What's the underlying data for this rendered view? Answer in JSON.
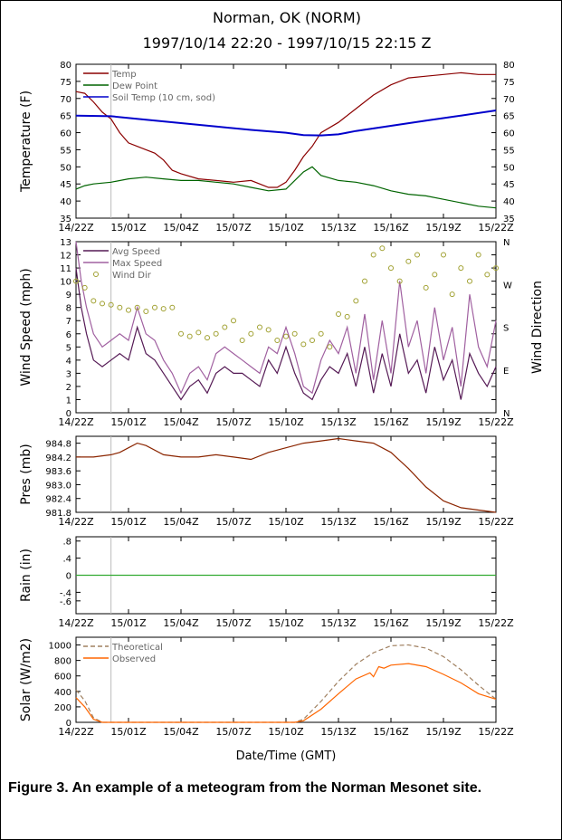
{
  "chart_data": {
    "type": "line",
    "title": "Norman, OK  (NORM)",
    "subtitle": "1997/10/14 22:20 - 1997/10/15 22:15 Z",
    "xlabel": "Date/Time (GMT)",
    "x_tick_labels": [
      "14/22Z",
      "15/01Z",
      "15/04Z",
      "15/07Z",
      "15/10Z",
      "15/13Z",
      "15/16Z",
      "15/19Z",
      "15/22Z"
    ],
    "x_range_hours": [
      0,
      24
    ],
    "panels": [
      {
        "id": "temperature",
        "ylabel": "Temperature (F)",
        "ylim": [
          35,
          80
        ],
        "y_ticks": [
          "35",
          "40",
          "45",
          "50",
          "55",
          "60",
          "65",
          "70",
          "75",
          "80"
        ],
        "right_y_ticks": [
          "35",
          "40",
          "45",
          "50",
          "55",
          "60",
          "65",
          "70",
          "75",
          "80"
        ],
        "legend": [
          "Temp",
          "Dew Point",
          "Soil Temp (10 cm, sod)"
        ],
        "series": [
          {
            "name": "Temp",
            "color": "#8b0000",
            "x": [
              0,
              0.5,
              1,
              1.5,
              2,
              2.5,
              3,
              3.5,
              4,
              4.5,
              5,
              5.5,
              6,
              7,
              8,
              9,
              10,
              11,
              11.5,
              12,
              12.5,
              13,
              13.5,
              14,
              15,
              16,
              17,
              18,
              19,
              20,
              21,
              22,
              23,
              24
            ],
            "values": [
              72,
              71.5,
              69,
              66,
              64,
              60,
              57,
              56,
              55,
              54,
              52,
              49,
              48,
              46.5,
              46,
              45.5,
              46,
              44,
              44,
              45.5,
              49,
              53,
              56,
              60,
              63,
              67,
              71,
              74,
              76,
              76.5,
              77,
              77.5,
              77,
              77
            ]
          },
          {
            "name": "Dew Point",
            "color": "#006400",
            "x": [
              0,
              0.5,
              1,
              2,
              3,
              4,
              5,
              6,
              7,
              8,
              9,
              10,
              11,
              12,
              12.5,
              13,
              13.5,
              14,
              15,
              16,
              17,
              18,
              19,
              20,
              21,
              22,
              23,
              24
            ],
            "values": [
              43.5,
              44.5,
              45,
              45.5,
              46.5,
              47,
              46.5,
              46,
              46,
              45.5,
              45,
              44,
              43,
              43.5,
              46,
              48.5,
              50,
              47.5,
              46,
              45.5,
              44.5,
              43,
              42,
              41.5,
              40.5,
              39.5,
              38.5,
              38
            ]
          },
          {
            "name": "Soil Temp (10 cm, sod)",
            "color": "#0000cc",
            "x": [
              0,
              2,
              4,
              6,
              8,
              10,
              12,
              13,
              14,
              15,
              16,
              18,
              20,
              22,
              24
            ],
            "values": [
              65,
              64.8,
              63.8,
              62.8,
              61.8,
              60.8,
              60,
              59.3,
              59.2,
              59.5,
              60.5,
              62,
              63.5,
              65,
              66.5
            ]
          }
        ]
      },
      {
        "id": "wind",
        "ylabel": "Wind Speed (mph)",
        "right_label": "Wind Direction",
        "ylim": [
          0,
          13
        ],
        "y_ticks": [
          "0",
          "1",
          "2",
          "3",
          "4",
          "5",
          "6",
          "7",
          "8",
          "9",
          "10",
          "11",
          "12",
          "13"
        ],
        "right_y_ticks": [
          "N",
          "E",
          "S",
          "W",
          "N"
        ],
        "legend": [
          "Avg Speed",
          "Max Speed",
          "Wind Dir"
        ],
        "series": [
          {
            "name": "Avg Speed",
            "color": "#551a55",
            "x": [
              0,
              0.3,
              0.6,
              1,
              1.5,
              2,
              2.5,
              3,
              3.5,
              4,
              4.5,
              5,
              5.5,
              6,
              6.5,
              7,
              7.5,
              8,
              8.5,
              9,
              9.5,
              10,
              10.5,
              11,
              11.5,
              12,
              12.5,
              13,
              13.5,
              14,
              14.5,
              15,
              15.5,
              16,
              16.5,
              17,
              17.5,
              18,
              18.5,
              19,
              19.5,
              20,
              20.5,
              21,
              21.5,
              22,
              22.5,
              23,
              23.5,
              24
            ],
            "values": [
              11,
              8,
              6,
              4,
              3.5,
              4,
              4.5,
              4,
              6.5,
              4.5,
              4,
              3,
              2,
              1,
              2,
              2.5,
              1.5,
              3,
              3.5,
              3,
              3,
              2.5,
              2,
              4,
              3,
              5,
              3,
              1.5,
              1,
              2.5,
              3.5,
              3,
              4.5,
              2,
              5,
              1.5,
              4.5,
              2,
              6,
              3,
              4,
              1.5,
              5,
              2.5,
              4,
              1,
              4.5,
              3,
              2,
              3.5
            ]
          },
          {
            "name": "Max Speed",
            "color": "#a060a0",
            "x": [
              0,
              0.3,
              0.6,
              1,
              1.5,
              2,
              2.5,
              3,
              3.5,
              4,
              4.5,
              5,
              5.5,
              6,
              6.5,
              7,
              7.5,
              8,
              8.5,
              9,
              9.5,
              10,
              10.5,
              11,
              11.5,
              12,
              12.5,
              13,
              13.5,
              14,
              14.5,
              15,
              15.5,
              16,
              16.5,
              17,
              17.5,
              18,
              18.5,
              19,
              19.5,
              20,
              20.5,
              21,
              21.5,
              22,
              22.5,
              23,
              23.5,
              24
            ],
            "values": [
              13,
              10,
              8,
              6,
              5,
              5.5,
              6,
              5.5,
              8,
              6,
              5.5,
              4,
              3,
              1.5,
              3,
              3.5,
              2.5,
              4.5,
              5,
              4.5,
              4,
              3.5,
              3,
              5,
              4.5,
              6.5,
              4.5,
              2,
              1.5,
              4,
              5.5,
              4.5,
              6.5,
              3,
              7.5,
              2.5,
              7,
              3,
              10,
              5,
              7,
              3,
              8,
              4,
              6.5,
              2,
              9,
              5,
              3.5,
              7
            ]
          },
          {
            "name": "Wind Dir",
            "color": "#a0a030",
            "style": "circles",
            "x": [
              0,
              0.5,
              1,
              1.5,
              2,
              2.5,
              3,
              3.5,
              4,
              4.5,
              5,
              5.5,
              6,
              6.5,
              7,
              7.5,
              8,
              8.5,
              9,
              9.5,
              10,
              10.5,
              11,
              11.5,
              12,
              12.5,
              13,
              13.5,
              14,
              14.5,
              15,
              15.5,
              16,
              16.5,
              17,
              17.5,
              18,
              18.5,
              19,
              19.5,
              20,
              20.5,
              21,
              21.5,
              22,
              22.5,
              23,
              23.5,
              24
            ],
            "values": [
              10,
              9.5,
              8.5,
              8.3,
              8.2,
              8,
              7.8,
              8,
              7.7,
              8,
              7.9,
              8,
              6,
              5.8,
              6.1,
              5.7,
              6,
              6.5,
              7,
              5.5,
              6,
              6.5,
              6.3,
              5.5,
              5.8,
              6,
              5.2,
              5.5,
              6,
              5,
              7.5,
              7.3,
              8.5,
              10,
              12,
              12.5,
              11,
              10,
              11.5,
              12,
              9.5,
              10.5,
              12,
              9,
              11,
              10,
              12,
              10.5,
              11
            ]
          }
        ]
      },
      {
        "id": "pressure",
        "ylabel": "Pres (mb)",
        "ylim": [
          981.8,
          985.1
        ],
        "y_ticks": [
          "981.8",
          "982.4",
          "983.0",
          "983.6",
          "984.2",
          "984.8"
        ],
        "series": [
          {
            "name": "",
            "color": "#8b2500",
            "x": [
              0,
              1,
              2,
              2.5,
              3,
              3.5,
              4,
              5,
              6,
              7,
              8,
              9,
              10,
              11,
              12,
              13,
              14,
              15,
              16,
              17,
              18,
              19,
              20,
              21,
              22,
              23,
              24
            ],
            "values": [
              984.2,
              984.2,
              984.3,
              984.4,
              984.6,
              984.8,
              984.7,
              984.3,
              984.2,
              984.2,
              984.3,
              984.2,
              984.1,
              984.4,
              984.6,
              984.8,
              984.9,
              985.0,
              984.9,
              984.8,
              984.4,
              983.7,
              982.9,
              982.3,
              982.0,
              981.9,
              981.8
            ]
          }
        ]
      },
      {
        "id": "rain",
        "ylabel": "Rain (in)",
        "ylim": [
          -0.9,
          0.9
        ],
        "y_ticks": [
          "-.6",
          "-.4",
          "0",
          ".4",
          ".8"
        ],
        "series": [
          {
            "name": "",
            "color": "#33aa33",
            "x": [
              0,
              24
            ],
            "values": [
              0,
              0
            ]
          }
        ]
      },
      {
        "id": "solar",
        "ylabel": "Solar (W/m2)",
        "ylim": [
          0,
          1100
        ],
        "y_ticks": [
          "0",
          "200",
          "400",
          "600",
          "800",
          "1000"
        ],
        "legend": [
          "Theoretical",
          "Observed"
        ],
        "series": [
          {
            "name": "Theoretical",
            "color": "#a08060",
            "style": "dashed",
            "x": [
              0,
              0.5,
              1,
              1.5,
              12.5,
              13,
              14,
              15,
              16,
              17,
              18,
              19,
              20,
              21,
              22,
              23,
              24
            ],
            "values": [
              420,
              280,
              60,
              0,
              0,
              40,
              270,
              530,
              750,
              900,
              990,
              1000,
              960,
              850,
              680,
              480,
              300
            ]
          },
          {
            "name": "Observed",
            "color": "#ff6600",
            "x": [
              0,
              0.5,
              1,
              1.5,
              12.5,
              13,
              14,
              15,
              16,
              16.8,
              17,
              17.3,
              17.6,
              18,
              19,
              20,
              21,
              22,
              23,
              24
            ],
            "values": [
              320,
              200,
              40,
              0,
              0,
              20,
              170,
              370,
              560,
              640,
              590,
              720,
              700,
              740,
              760,
              720,
              620,
              510,
              370,
              300
            ]
          }
        ]
      }
    ]
  },
  "caption": "Figure 3.  An example of a meteogram from the Norman Mesonet site."
}
